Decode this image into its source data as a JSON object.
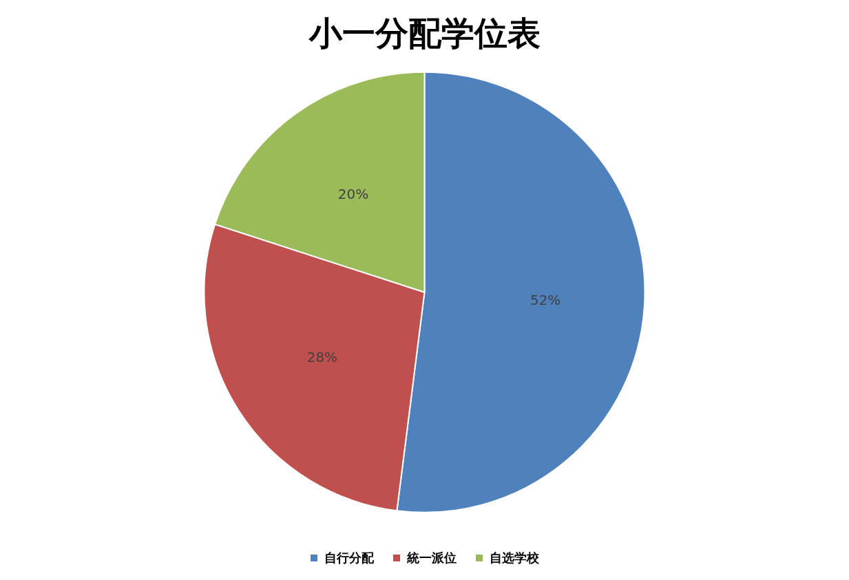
{
  "chart_data": {
    "type": "pie",
    "title": "小一分配学位表",
    "categories": [
      "自行分配",
      "統一派位",
      "自选学校"
    ],
    "values": [
      52,
      28,
      20
    ],
    "colors": [
      "#4f81bd",
      "#c0504d",
      "#9bbb59"
    ],
    "value_labels": [
      "52%",
      "28%",
      "20%"
    ],
    "legend": "bottom"
  }
}
